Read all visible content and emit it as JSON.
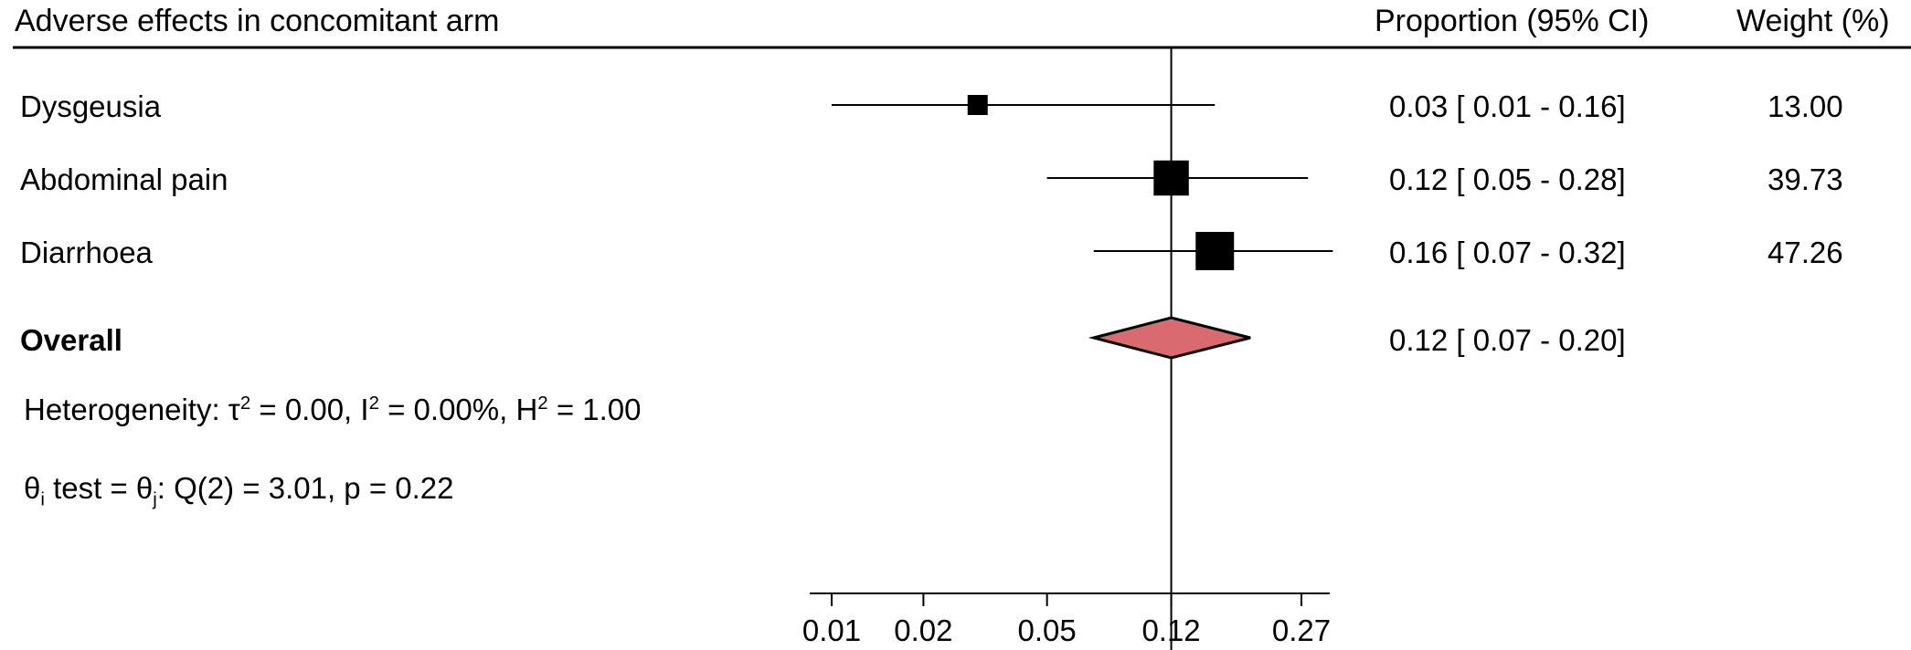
{
  "header": {
    "title": "Adverse effects in concomitant arm",
    "ci_col": "Proportion (95% CI)",
    "weight_col": "Weight (%)"
  },
  "chart_data": {
    "type": "forest",
    "x_scale": "logit",
    "x_ticks": [
      0.01,
      0.02,
      0.05,
      0.12,
      0.27
    ],
    "x_tick_labels": [
      "0.01",
      "0.02",
      "0.05",
      "0.12",
      "0.27"
    ],
    "reference_line": 0.12,
    "studies": [
      {
        "label": "Dysgeusia",
        "est": 0.03,
        "lo": 0.01,
        "hi": 0.16,
        "weight": 13.0,
        "ci_text": "0.03 [ 0.01 -  0.16]",
        "weight_text": "13.00"
      },
      {
        "label": "Abdominal pain",
        "est": 0.12,
        "lo": 0.05,
        "hi": 0.28,
        "weight": 39.73,
        "ci_text": "0.12 [ 0.05 -  0.28]",
        "weight_text": "39.73"
      },
      {
        "label": "Diarrhoea",
        "est": 0.16,
        "lo": 0.07,
        "hi": 0.32,
        "weight": 47.26,
        "ci_text": "0.16 [ 0.07 -  0.32]",
        "weight_text": "47.26"
      }
    ],
    "overall": {
      "label": "Overall",
      "est": 0.12,
      "lo": 0.07,
      "hi": 0.2,
      "ci_text": "0.12 [ 0.07 -  0.20]"
    },
    "colors": {
      "diamond_fill": "#d96b70",
      "marker": "#000000",
      "line": "#000000"
    }
  },
  "footnotes": {
    "heterogeneity": "Heterogeneity: τ² = 0.00, I² = 0.00%, H² = 1.00",
    "h_prefix": "Heterogeneity: τ",
    "h_tau": " = 0.00, I",
    "h_i": " = 0.00%, H",
    "h_h": " = 1.00",
    "sq": "2",
    "test": "θi test = θj: Q(2) = 3.01, p = 0.22",
    "t_theta1": "θ",
    "t_sub1": "i",
    "t_mid": " test = θ",
    "t_sub2": "j",
    "t_end": ": Q(2) = 3.01, p = 0.22"
  }
}
